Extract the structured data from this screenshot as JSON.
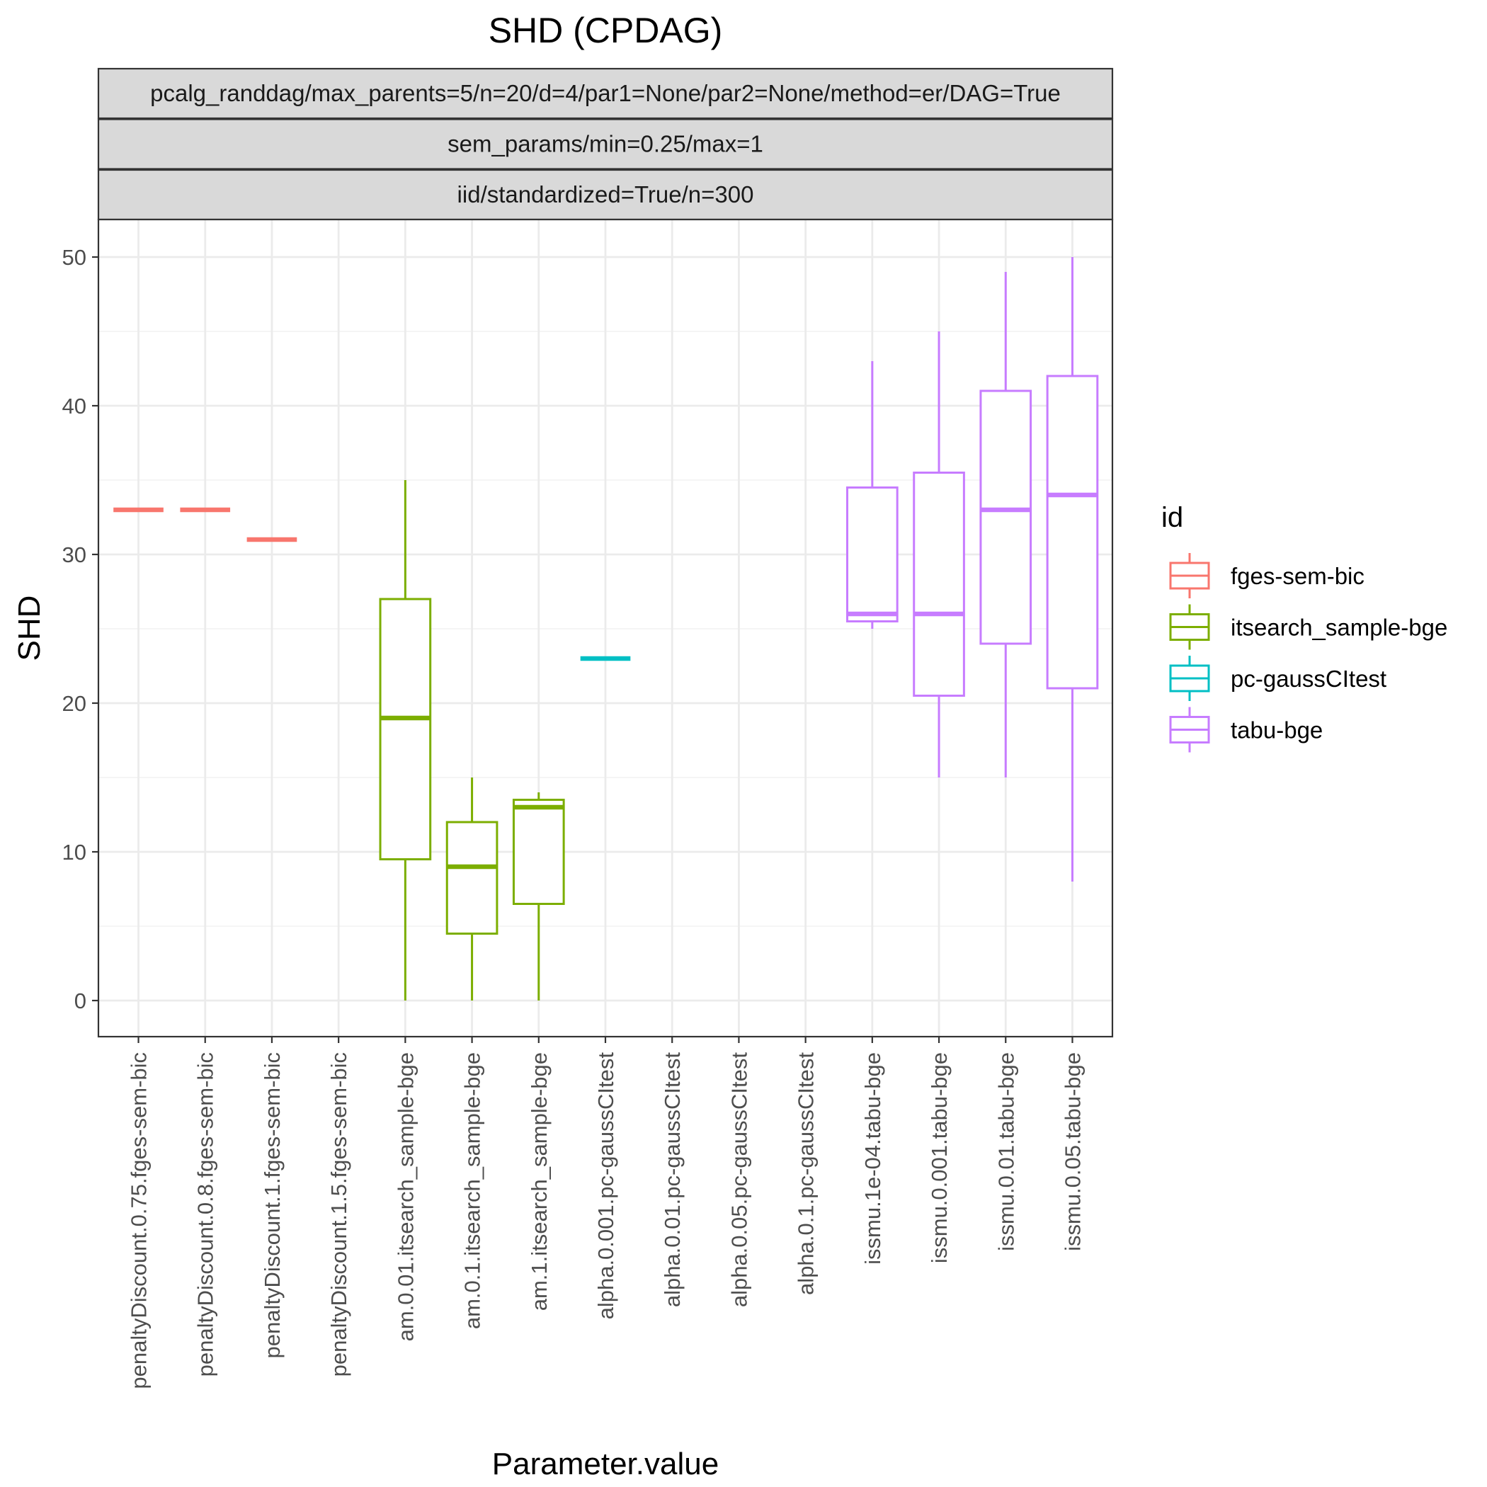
{
  "chart_data": {
    "type": "boxplot",
    "title": "SHD (CPDAG)",
    "facet_strips": [
      "pcalg_randdag/max_parents=5/n=20/d=4/par1=None/par2=None/method=er/DAG=True",
      "sem_params/min=0.25/max=1",
      "iid/standardized=True/n=300"
    ],
    "xlabel": "Parameter.value",
    "ylabel": "SHD",
    "ylim": [
      -2.5,
      52.5
    ],
    "yticks": [
      0,
      10,
      20,
      30,
      40,
      50
    ],
    "ytick_labels": [
      "0",
      "10",
      "20",
      "30",
      "40",
      "50"
    ],
    "categories": [
      "penaltyDiscount.0.75.fges-sem-bic",
      "penaltyDiscount.0.8.fges-sem-bic",
      "penaltyDiscount.1.fges-sem-bic",
      "penaltyDiscount.1.5.fges-sem-bic",
      "am.0.01.itsearch_sample-bge",
      "am.0.1.itsearch_sample-bge",
      "am.1.itsearch_sample-bge",
      "alpha.0.001.pc-gaussCItest",
      "alpha.0.01.pc-gaussCItest",
      "alpha.0.05.pc-gaussCItest",
      "alpha.0.1.pc-gaussCItest",
      "issmu.1e-04.tabu-bge",
      "issmu.0.001.tabu-bge",
      "issmu.0.01.tabu-bge",
      "issmu.0.05.tabu-bge"
    ],
    "legend": {
      "title": "id",
      "position": "right",
      "entries": [
        {
          "name": "fges-sem-bic",
          "color": "#F8766D"
        },
        {
          "name": "itsearch_sample-bge",
          "color": "#7CAE00"
        },
        {
          "name": "pc-gaussCItest",
          "color": "#00BFC4"
        },
        {
          "name": "tabu-bge",
          "color": "#C77CFF"
        }
      ]
    },
    "boxes": [
      {
        "category": "penaltyDiscount.0.75.fges-sem-bic",
        "group": "fges-sem-bic",
        "min": 33,
        "q1": 33,
        "median": 33,
        "q3": 33,
        "max": 33
      },
      {
        "category": "penaltyDiscount.0.8.fges-sem-bic",
        "group": "fges-sem-bic",
        "min": 33,
        "q1": 33,
        "median": 33,
        "q3": 33,
        "max": 33
      },
      {
        "category": "penaltyDiscount.1.fges-sem-bic",
        "group": "fges-sem-bic",
        "min": 31,
        "q1": 31,
        "median": 31,
        "q3": 31,
        "max": 31
      },
      {
        "category": "am.0.01.itsearch_sample-bge",
        "group": "itsearch_sample-bge",
        "min": 0,
        "q1": 9.5,
        "median": 19,
        "q3": 27,
        "max": 35
      },
      {
        "category": "am.0.1.itsearch_sample-bge",
        "group": "itsearch_sample-bge",
        "min": 0,
        "q1": 4.5,
        "median": 9,
        "q3": 12,
        "max": 15
      },
      {
        "category": "am.1.itsearch_sample-bge",
        "group": "itsearch_sample-bge",
        "min": 0,
        "q1": 6.5,
        "median": 13,
        "q3": 13.5,
        "max": 14
      },
      {
        "category": "alpha.0.001.pc-gaussCItest",
        "group": "pc-gaussCItest",
        "min": 23,
        "q1": 23,
        "median": 23,
        "q3": 23,
        "max": 23
      },
      {
        "category": "issmu.1e-04.tabu-bge",
        "group": "tabu-bge",
        "min": 25,
        "q1": 25.5,
        "median": 26,
        "q3": 34.5,
        "max": 43
      },
      {
        "category": "issmu.0.001.tabu-bge",
        "group": "tabu-bge",
        "min": 15,
        "q1": 20.5,
        "median": 26,
        "q3": 35.5,
        "max": 45
      },
      {
        "category": "issmu.0.01.tabu-bge",
        "group": "tabu-bge",
        "min": 15,
        "q1": 24,
        "median": 33,
        "q3": 41,
        "max": 49
      },
      {
        "category": "issmu.0.05.tabu-bge",
        "group": "tabu-bge",
        "min": 8,
        "q1": 21,
        "median": 34,
        "q3": 42,
        "max": 50
      }
    ]
  }
}
